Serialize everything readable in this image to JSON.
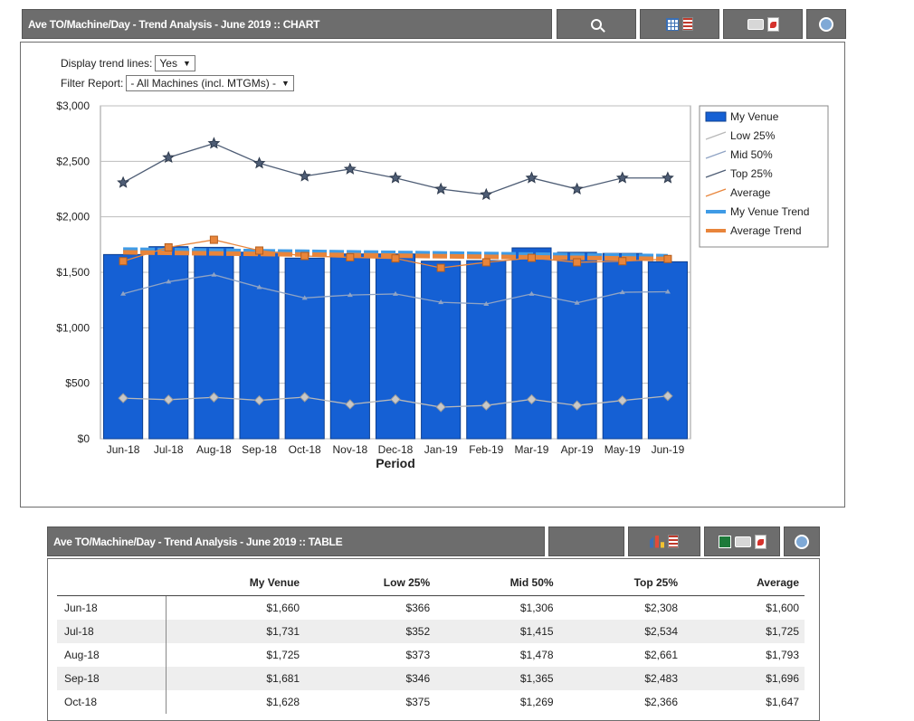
{
  "chart_panel": {
    "title": "Ave TO/Machine/Day - Trend Analysis - June 2019 :: CHART",
    "controls": {
      "trend_label": "Display trend lines:",
      "trend_value": "Yes",
      "filter_label": "Filter Report:",
      "filter_value": "- All Machines (incl. MTGMs) -"
    }
  },
  "table_panel": {
    "title": "Ave TO/Machine/Day - Trend Analysis - June 2019 :: TABLE",
    "columns": [
      "",
      "My Venue",
      "Low 25%",
      "Mid 50%",
      "Top 25%",
      "Average"
    ],
    "rows": [
      [
        "Jun-18",
        "$1,660",
        "$366",
        "$1,306",
        "$2,308",
        "$1,600"
      ],
      [
        "Jul-18",
        "$1,731",
        "$352",
        "$1,415",
        "$2,534",
        "$1,725"
      ],
      [
        "Aug-18",
        "$1,725",
        "$373",
        "$1,478",
        "$2,661",
        "$1,793"
      ],
      [
        "Sep-18",
        "$1,681",
        "$346",
        "$1,365",
        "$2,483",
        "$1,696"
      ],
      [
        "Oct-18",
        "$1,628",
        "$375",
        "$1,269",
        "$2,366",
        "$1,647"
      ]
    ]
  },
  "chart_data": {
    "type": "bar",
    "title": "",
    "xlabel": "Period",
    "ylabel": "",
    "ylim": [
      0,
      3000
    ],
    "yticks": [
      "$0",
      "$500",
      "$1,000",
      "$1,500",
      "$2,000",
      "$2,500",
      "$3,000"
    ],
    "grid": "horizontal",
    "legend_position": "right",
    "categories": [
      "Jun-18",
      "Jul-18",
      "Aug-18",
      "Sep-18",
      "Oct-18",
      "Nov-18",
      "Dec-18",
      "Jan-19",
      "Feb-19",
      "Mar-19",
      "Apr-19",
      "May-19",
      "Jun-19"
    ],
    "series": [
      {
        "name": "My Venue",
        "kind": "bar",
        "color": "#1560d4",
        "values": [
          1660,
          1731,
          1725,
          1681,
          1628,
          1665,
          1665,
          1600,
          1605,
          1720,
          1680,
          1670,
          1595
        ]
      },
      {
        "name": "Low 25%",
        "kind": "line",
        "color": "#b8b8b8",
        "values": [
          366,
          352,
          373,
          346,
          375,
          310,
          355,
          285,
          300,
          355,
          300,
          345,
          385
        ]
      },
      {
        "name": "Mid 50%",
        "kind": "line",
        "color": "#8fa3c4",
        "values": [
          1306,
          1415,
          1478,
          1365,
          1269,
          1295,
          1305,
          1230,
          1215,
          1305,
          1225,
          1320,
          1325
        ]
      },
      {
        "name": "Top 25%",
        "kind": "line",
        "color": "#4e5d75",
        "values": [
          2308,
          2534,
          2661,
          2483,
          2366,
          2430,
          2350,
          2250,
          2200,
          2350,
          2250,
          2350,
          2350
        ]
      },
      {
        "name": "Average",
        "kind": "line",
        "color": "#e8853b",
        "values": [
          1600,
          1725,
          1793,
          1696,
          1647,
          1635,
          1625,
          1540,
          1590,
          1630,
          1590,
          1600,
          1620
        ]
      },
      {
        "name": "My Venue Trend",
        "kind": "trend",
        "color": "#3f9be6",
        "values": [
          1705,
          1700,
          1695,
          1690,
          1685,
          1680,
          1675,
          1670,
          1665,
          1660,
          1655,
          1650,
          1645
        ]
      },
      {
        "name": "Average Trend",
        "kind": "trend",
        "color": "#e8853b",
        "values": [
          1680,
          1675,
          1670,
          1665,
          1660,
          1655,
          1650,
          1645,
          1640,
          1635,
          1630,
          1625,
          1620
        ]
      }
    ]
  }
}
